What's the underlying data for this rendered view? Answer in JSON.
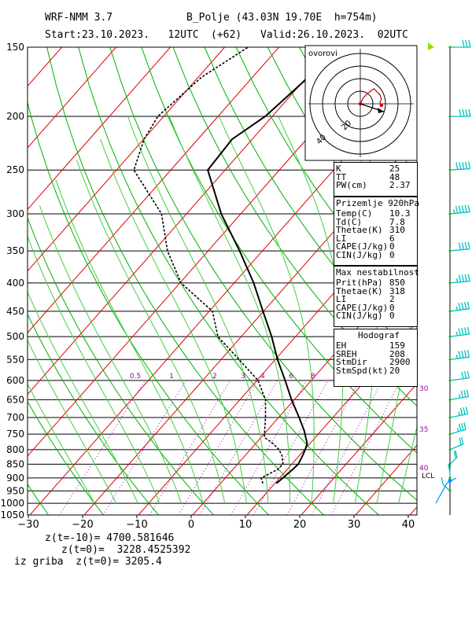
{
  "header": {
    "model": "WRF-NMM 3.7",
    "station": "B_Polje (43.03N 19.70E  h=754m)",
    "start": "Start:23.10.2023.   12UTC",
    "offset": "(+62)",
    "valid": "Valid:26.10.2023.  02UTC"
  },
  "footer": {
    "line1": "z(t=-10)= 4700.581646",
    "line2": "z(t=0)=  3228.4525392",
    "line3": "iz griba  z(t=0)= 3205.4"
  },
  "hodograph_label": "ovorovi",
  "hodograph_ring_labels": [
    "20",
    "40"
  ],
  "indices": {
    "box1": [
      [
        "K",
        "25"
      ],
      [
        "TT",
        "48"
      ],
      [
        "PW(cm)",
        "2.37"
      ]
    ],
    "box2_title": "Prizemlje 920hPa",
    "box2": [
      [
        "Temp(C)",
        "10.3"
      ],
      [
        "Td(C)",
        "7.8"
      ],
      [
        "Thetae(K)",
        "310"
      ],
      [
        "LI",
        "6"
      ],
      [
        "CAPE(J/kg)",
        "0"
      ],
      [
        "CIN(J/kg)",
        "0"
      ]
    ],
    "box3_title": "Max nestabilnost",
    "box3": [
      [
        "Prit(hPa)",
        "850"
      ],
      [
        "Thetae(K)",
        "318"
      ],
      [
        "LI",
        "2"
      ],
      [
        "CAPE(J/kg)",
        "0"
      ],
      [
        "CIN(J/kg)",
        "0"
      ]
    ],
    "box4_title": "Hodograf",
    "box4": [
      [
        "EH",
        "159"
      ],
      [
        "SREH",
        "208"
      ],
      [
        "StmDir",
        "2900"
      ],
      [
        "StmSpd(kt)",
        "20"
      ]
    ]
  },
  "mixing_ratio_labels": [
    "0.5",
    "1",
    "2",
    "3",
    "4",
    "6",
    "8"
  ],
  "theta_e_labels": [
    "30",
    "35",
    "40"
  ],
  "lcl_label": "LCL",
  "colors": {
    "isotherm": "#e00000",
    "dry_adiabat": "#00b000",
    "moist_adiabat": "#00b000",
    "mixing_ratio": "#a000a0",
    "wind": "#00c0c0",
    "temperature": "#000000",
    "dewpoint": "#000000",
    "hodo_trace": "#d00000"
  },
  "chart_data": {
    "type": "line",
    "title": "",
    "xlabel": "",
    "ylabel": "",
    "x_ticks": [
      -30,
      -20,
      -10,
      0,
      10,
      20,
      30,
      40
    ],
    "y_ticks": [
      150,
      200,
      250,
      300,
      350,
      400,
      450,
      500,
      550,
      600,
      650,
      700,
      750,
      800,
      850,
      900,
      950,
      1000,
      1050
    ],
    "xlim": [
      -30,
      42
    ],
    "ylim": [
      1050,
      150
    ],
    "y_scale": "log-pressure",
    "series": [
      {
        "name": "",
        "kind": "temperature",
        "points": [
          [
            921,
            10.3
          ],
          [
            900,
            10.6
          ],
          [
            870,
            11.0
          ],
          [
            850,
            11.2
          ],
          [
            820,
            10.6
          ],
          [
            800,
            10.1
          ],
          [
            780,
            9.5
          ],
          [
            760,
            8.2
          ],
          [
            740,
            6.9
          ],
          [
            700,
            3.8
          ],
          [
            650,
            -0.5
          ],
          [
            600,
            -4.8
          ],
          [
            550,
            -9.6
          ],
          [
            500,
            -14.4
          ],
          [
            450,
            -20.1
          ],
          [
            400,
            -26.4
          ],
          [
            350,
            -34.2
          ],
          [
            300,
            -43.6
          ],
          [
            250,
            -53.2
          ],
          [
            220,
            -53.7
          ],
          [
            200,
            -51.3
          ],
          [
            170,
            -49.7
          ],
          [
            150,
            -48.7
          ]
        ]
      },
      {
        "name": "",
        "kind": "dewpoint",
        "points": [
          [
            921,
            7.8
          ],
          [
            900,
            6.6
          ],
          [
            870,
            8.2
          ],
          [
            850,
            8.4
          ],
          [
            820,
            6.8
          ],
          [
            800,
            5.3
          ],
          [
            780,
            3.2
          ],
          [
            760,
            0.6
          ],
          [
            740,
            -0.4
          ],
          [
            700,
            -2.4
          ],
          [
            650,
            -5.3
          ],
          [
            600,
            -9.8
          ],
          [
            550,
            -16.7
          ],
          [
            500,
            -24.3
          ],
          [
            450,
            -29.4
          ],
          [
            400,
            -39.8
          ],
          [
            350,
            -47.5
          ],
          [
            300,
            -54.6
          ],
          [
            250,
            -66.8
          ],
          [
            220,
            -69.9
          ],
          [
            200,
            -71.1
          ],
          [
            170,
            -69.4
          ],
          [
            150,
            -65.7
          ]
        ]
      }
    ],
    "wind_barbs": [
      {
        "p": 150,
        "dir": 270,
        "spd": 30
      },
      {
        "p": 200,
        "dir": 270,
        "spd": 40
      },
      {
        "p": 250,
        "dir": 260,
        "spd": 50
      },
      {
        "p": 300,
        "dir": 255,
        "spd": 45
      },
      {
        "p": 350,
        "dir": 255,
        "spd": 40
      },
      {
        "p": 400,
        "dir": 255,
        "spd": 35
      },
      {
        "p": 450,
        "dir": 250,
        "spd": 35
      },
      {
        "p": 500,
        "dir": 250,
        "spd": 35
      },
      {
        "p": 550,
        "dir": 250,
        "spd": 35
      },
      {
        "p": 600,
        "dir": 250,
        "spd": 30
      },
      {
        "p": 650,
        "dir": 245,
        "spd": 25
      },
      {
        "p": 700,
        "dir": 240,
        "spd": 25
      },
      {
        "p": 750,
        "dir": 230,
        "spd": 25
      },
      {
        "p": 800,
        "dir": 220,
        "spd": 20
      },
      {
        "p": 850,
        "dir": 200,
        "spd": 20
      },
      {
        "p": 900,
        "dir": 180,
        "spd": 15
      },
      {
        "p": 950,
        "dir": 160,
        "spd": 10
      }
    ],
    "hodograph": {
      "ring_values": [
        10,
        20,
        30,
        40
      ],
      "points": [
        [
          0,
          0
        ],
        [
          2,
          4
        ],
        [
          5,
          7
        ],
        [
          9,
          10
        ],
        [
          11,
          8
        ],
        [
          13,
          6
        ],
        [
          14,
          3
        ],
        [
          13,
          1
        ],
        [
          14,
          -1
        ]
      ]
    }
  }
}
